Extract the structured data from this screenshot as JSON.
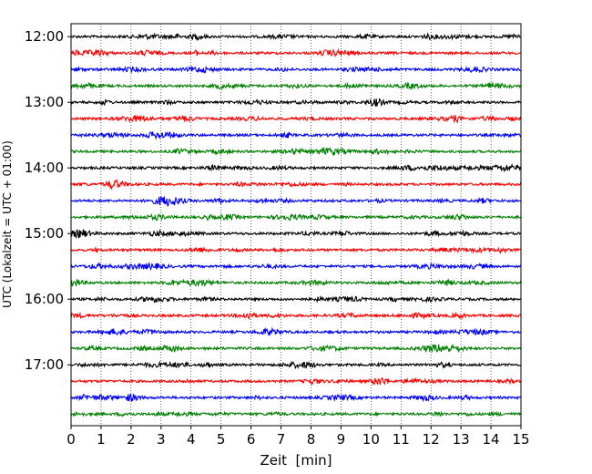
{
  "chart_data": {
    "type": "line",
    "title": "",
    "xlabel": "Zeit  [min]",
    "ylabel": "UTC (Lokalzeit = UTC + 01:00)",
    "xlim": [
      0,
      15
    ],
    "x_ticks": [
      "0",
      "1",
      "2",
      "3",
      "4",
      "5",
      "6",
      "7",
      "8",
      "9",
      "10",
      "11",
      "12",
      "13",
      "14",
      "15"
    ],
    "y_ticks": [
      "12:00",
      "13:00",
      "14:00",
      "15:00",
      "16:00",
      "17:00"
    ],
    "x_grid": true,
    "y_grid": false,
    "legend": "none",
    "trace_colors": [
      "#000000",
      "#ff0000",
      "#0000ff",
      "#008000"
    ],
    "trace_start_times": [
      "12:00",
      "12:15",
      "12:30",
      "12:45",
      "13:00",
      "13:15",
      "13:30",
      "13:45",
      "14:00",
      "14:15",
      "14:30",
      "14:45",
      "15:00",
      "15:15",
      "15:30",
      "15:45",
      "16:00",
      "16:15",
      "16:30",
      "16:45",
      "17:00",
      "17:15",
      "17:30",
      "17:45"
    ],
    "trace_duration_min": 15
  }
}
